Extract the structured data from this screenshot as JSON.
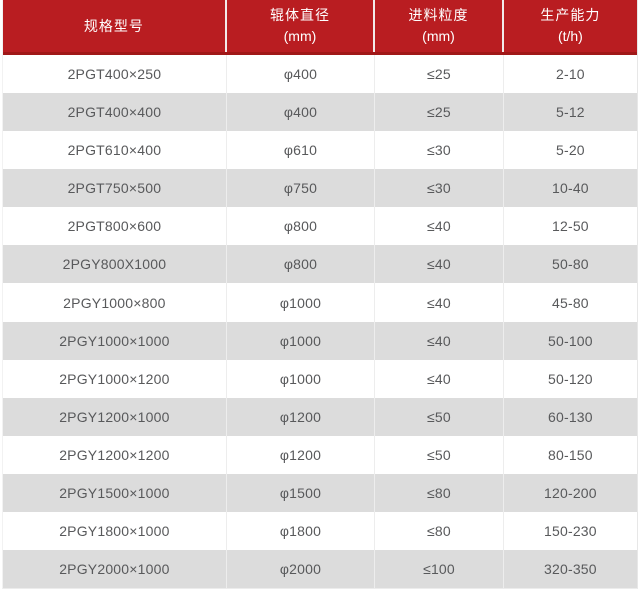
{
  "colors": {
    "header_bg": "#b91d21",
    "header_border_bottom": "#a01818",
    "header_text": "#ffffff",
    "row_alt_bg": "#dcdcdc",
    "row_bg": "#ffffff",
    "body_text": "#58595b",
    "cell_separator": "#ededed"
  },
  "table": {
    "header": [
      {
        "title": "规格型号",
        "unit": ""
      },
      {
        "title": "辊体直径",
        "unit": "(mm)"
      },
      {
        "title": "进料粒度",
        "unit": "(mm)"
      },
      {
        "title": "生产能力",
        "unit": "(t/h)"
      }
    ],
    "rows": [
      {
        "model": "2PGT400×250",
        "diameter": "φ400",
        "feed": "≤25",
        "capacity": "2-10"
      },
      {
        "model": "2PGT400×400",
        "diameter": "φ400",
        "feed": "≤25",
        "capacity": "5-12"
      },
      {
        "model": "2PGT610×400",
        "diameter": "φ610",
        "feed": "≤30",
        "capacity": "5-20"
      },
      {
        "model": "2PGT750×500",
        "diameter": "φ750",
        "feed": "≤30",
        "capacity": "10-40"
      },
      {
        "model": "2PGT800×600",
        "diameter": "φ800",
        "feed": "≤40",
        "capacity": "12-50"
      },
      {
        "model": "2PGY800X1000",
        "diameter": "φ800",
        "feed": "≤40",
        "capacity": "50-80"
      },
      {
        "model": "2PGY1000×800",
        "diameter": "φ1000",
        "feed": "≤40",
        "capacity": "45-80"
      },
      {
        "model": "2PGY1000×1000",
        "diameter": "φ1000",
        "feed": "≤40",
        "capacity": "50-100"
      },
      {
        "model": "2PGY1000×1200",
        "diameter": "φ1000",
        "feed": "≤40",
        "capacity": "50-120"
      },
      {
        "model": "2PGY1200×1000",
        "diameter": "φ1200",
        "feed": "≤50",
        "capacity": "60-130"
      },
      {
        "model": "2PGY1200×1200",
        "diameter": "φ1200",
        "feed": "≤50",
        "capacity": "80-150"
      },
      {
        "model": "2PGY1500×1000",
        "diameter": "φ1500",
        "feed": "≤80",
        "capacity": "120-200"
      },
      {
        "model": "2PGY1800×1000",
        "diameter": "φ1800",
        "feed": "≤80",
        "capacity": "150-230"
      },
      {
        "model": "2PGY2000×1000",
        "diameter": "φ2000",
        "feed": "≤100",
        "capacity": "320-350"
      }
    ]
  },
  "chart_data": {
    "type": "table",
    "title": "",
    "columns": [
      "规格型号",
      "辊体直径 (mm)",
      "进料粒度 (mm)",
      "生产能力 (t/h)"
    ],
    "rows": [
      [
        "2PGT400×250",
        "φ400",
        "≤25",
        "2-10"
      ],
      [
        "2PGT400×400",
        "φ400",
        "≤25",
        "5-12"
      ],
      [
        "2PGT610×400",
        "φ610",
        "≤30",
        "5-20"
      ],
      [
        "2PGT750×500",
        "φ750",
        "≤30",
        "10-40"
      ],
      [
        "2PGT800×600",
        "φ800",
        "≤40",
        "12-50"
      ],
      [
        "2PGY800X1000",
        "φ800",
        "≤40",
        "50-80"
      ],
      [
        "2PGY1000×800",
        "φ1000",
        "≤40",
        "45-80"
      ],
      [
        "2PGY1000×1000",
        "φ1000",
        "≤40",
        "50-100"
      ],
      [
        "2PGY1000×1200",
        "φ1000",
        "≤40",
        "50-120"
      ],
      [
        "2PGY1200×1000",
        "φ1200",
        "≤50",
        "60-130"
      ],
      [
        "2PGY1200×1200",
        "φ1200",
        "≤50",
        "80-150"
      ],
      [
        "2PGY1500×1000",
        "φ1500",
        "≤80",
        "120-200"
      ],
      [
        "2PGY1800×1000",
        "φ1800",
        "≤80",
        "150-230"
      ],
      [
        "2PGY2000×1000",
        "φ2000",
        "≤100",
        "320-350"
      ]
    ],
    "layout": {
      "header_rows": 1,
      "zebra_striping": true,
      "grid": "vertical-only",
      "legend": "none"
    }
  }
}
